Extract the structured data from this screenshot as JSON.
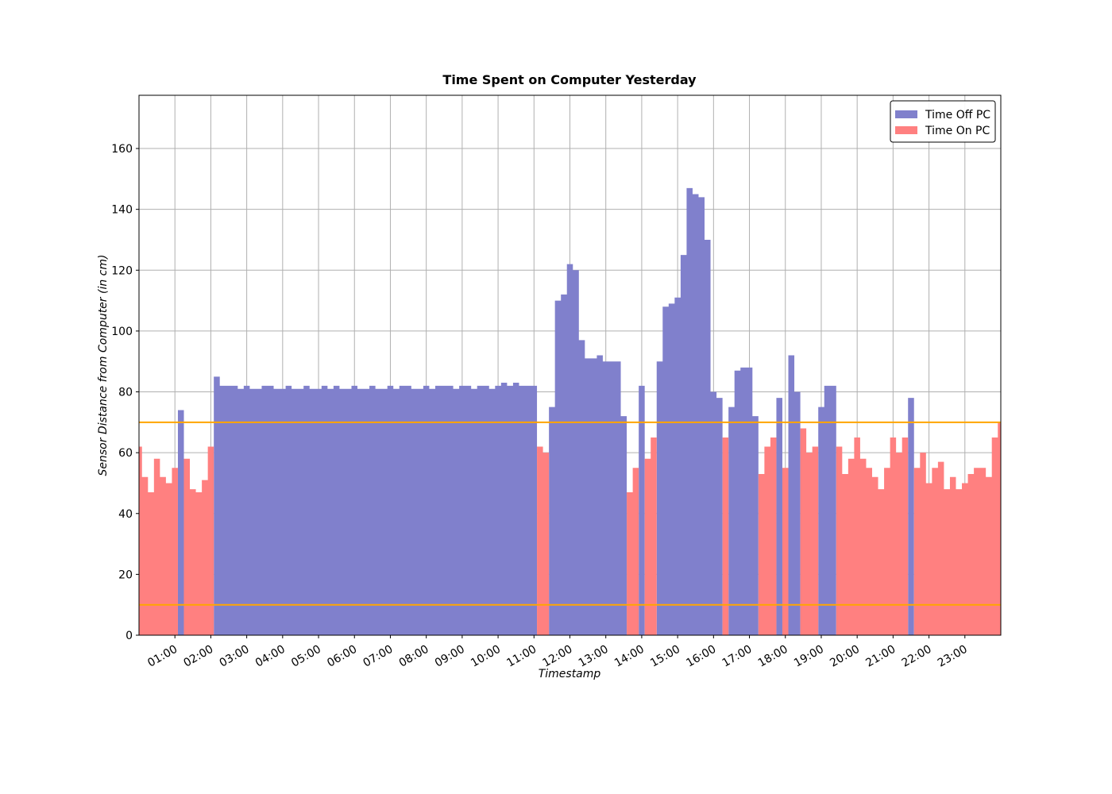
{
  "chart_data": {
    "type": "area",
    "title": "Time Spent on Computer Yesterday",
    "xlabel": "Timestamp",
    "ylabel": "Sensor Distance from Computer (in cm)",
    "x": [
      "00:00",
      "00:10",
      "00:20",
      "00:30",
      "00:40",
      "00:50",
      "01:00",
      "01:10",
      "01:20",
      "01:30",
      "01:40",
      "01:50",
      "02:00",
      "02:10",
      "02:20",
      "02:30",
      "02:40",
      "02:50",
      "03:00",
      "03:10",
      "03:20",
      "03:30",
      "03:40",
      "03:50",
      "04:00",
      "04:10",
      "04:20",
      "04:30",
      "04:40",
      "04:50",
      "05:00",
      "05:10",
      "05:20",
      "05:30",
      "05:40",
      "05:50",
      "06:00",
      "06:10",
      "06:20",
      "06:30",
      "06:40",
      "06:50",
      "07:00",
      "07:10",
      "07:20",
      "07:30",
      "07:40",
      "07:50",
      "08:00",
      "08:10",
      "08:20",
      "08:30",
      "08:40",
      "08:50",
      "09:00",
      "09:10",
      "09:20",
      "09:30",
      "09:40",
      "09:50",
      "10:00",
      "10:10",
      "10:20",
      "10:30",
      "10:40",
      "10:50",
      "11:00",
      "11:10",
      "11:20",
      "11:30",
      "11:40",
      "11:50",
      "12:00",
      "12:10",
      "12:20",
      "12:30",
      "12:40",
      "12:50",
      "13:00",
      "13:10",
      "13:20",
      "13:30",
      "13:40",
      "13:50",
      "14:00",
      "14:10",
      "14:20",
      "14:30",
      "14:40",
      "14:50",
      "15:00",
      "15:10",
      "15:20",
      "15:30",
      "15:40",
      "15:50",
      "16:00",
      "16:10",
      "16:20",
      "16:30",
      "16:40",
      "16:50",
      "17:00",
      "17:10",
      "17:20",
      "17:30",
      "17:40",
      "17:50",
      "18:00",
      "18:10",
      "18:20",
      "18:30",
      "18:40",
      "18:50",
      "19:00",
      "19:10",
      "19:20",
      "19:30",
      "19:40",
      "19:50",
      "20:00",
      "20:10",
      "20:20",
      "20:30",
      "20:40",
      "20:50",
      "21:00",
      "21:10",
      "21:20",
      "21:30",
      "21:40",
      "21:50",
      "22:00",
      "22:10",
      "22:20",
      "22:30",
      "22:40",
      "22:50",
      "23:00",
      "23:10",
      "23:20",
      "23:30",
      "23:40",
      "23:50",
      "24:00"
    ],
    "series": [
      {
        "name": "Time Off PC",
        "color": "#8080cc",
        "values": [
          null,
          null,
          null,
          null,
          null,
          null,
          null,
          74,
          null,
          null,
          null,
          null,
          null,
          85,
          82,
          82,
          82,
          81,
          82,
          81,
          81,
          82,
          82,
          81,
          81,
          82,
          81,
          81,
          82,
          81,
          81,
          82,
          81,
          82,
          81,
          81,
          82,
          81,
          81,
          82,
          81,
          81,
          82,
          81,
          82,
          82,
          81,
          81,
          82,
          81,
          82,
          82,
          82,
          81,
          82,
          82,
          81,
          82,
          82,
          81,
          82,
          83,
          82,
          83,
          82,
          82,
          82,
          null,
          null,
          75,
          110,
          112,
          122,
          120,
          97,
          91,
          91,
          92,
          90,
          90,
          90,
          72,
          null,
          null,
          82,
          null,
          null,
          90,
          108,
          109,
          111,
          125,
          147,
          145,
          144,
          130,
          80,
          78,
          null,
          75,
          87,
          88,
          88,
          72,
          null,
          null,
          null,
          78,
          null,
          92,
          80,
          null,
          null,
          null,
          75,
          82,
          82,
          null,
          null,
          null,
          null,
          null,
          null,
          null,
          null,
          null,
          null,
          null,
          null,
          78,
          null,
          null,
          null,
          null,
          null,
          null,
          null,
          null,
          null,
          null,
          null,
          null,
          null,
          null,
          null
        ]
      },
      {
        "name": "Time On PC",
        "color": "#ff8080",
        "values": [
          62,
          52,
          47,
          58,
          52,
          50,
          55,
          null,
          58,
          48,
          47,
          51,
          62,
          null,
          null,
          null,
          null,
          null,
          null,
          null,
          null,
          null,
          null,
          null,
          null,
          null,
          null,
          null,
          null,
          null,
          null,
          null,
          null,
          null,
          null,
          null,
          null,
          null,
          null,
          null,
          null,
          null,
          null,
          null,
          null,
          null,
          null,
          null,
          null,
          null,
          null,
          null,
          null,
          null,
          null,
          null,
          null,
          null,
          null,
          null,
          null,
          null,
          null,
          null,
          null,
          null,
          null,
          62,
          60,
          null,
          null,
          null,
          null,
          null,
          null,
          null,
          null,
          null,
          null,
          null,
          null,
          null,
          47,
          55,
          null,
          58,
          65,
          null,
          null,
          null,
          null,
          null,
          null,
          null,
          null,
          null,
          null,
          null,
          65,
          null,
          null,
          null,
          null,
          null,
          53,
          62,
          65,
          null,
          55,
          null,
          null,
          68,
          60,
          62,
          null,
          null,
          null,
          62,
          53,
          58,
          65,
          58,
          55,
          52,
          48,
          55,
          65,
          60,
          65,
          null,
          55,
          60,
          50,
          55,
          57,
          48,
          52,
          48,
          50,
          53,
          55,
          55,
          52,
          65,
          70
        ]
      }
    ],
    "hlines": [
      {
        "value": 70,
        "color": "#ffa500"
      },
      {
        "value": 10,
        "color": "#ffa500"
      }
    ],
    "xlim": [
      "00:00",
      "24:00"
    ],
    "xticks": [
      "01:00",
      "02:00",
      "03:00",
      "04:00",
      "05:00",
      "06:00",
      "07:00",
      "08:00",
      "09:00",
      "10:00",
      "11:00",
      "12:00",
      "13:00",
      "14:00",
      "15:00",
      "16:00",
      "17:00",
      "18:00",
      "19:00",
      "20:00",
      "21:00",
      "22:00",
      "23:00"
    ],
    "ylim": [
      0,
      177.5
    ],
    "yticks": [
      0,
      20,
      40,
      60,
      80,
      100,
      120,
      140,
      160
    ],
    "grid": true,
    "legend": "upper right"
  }
}
